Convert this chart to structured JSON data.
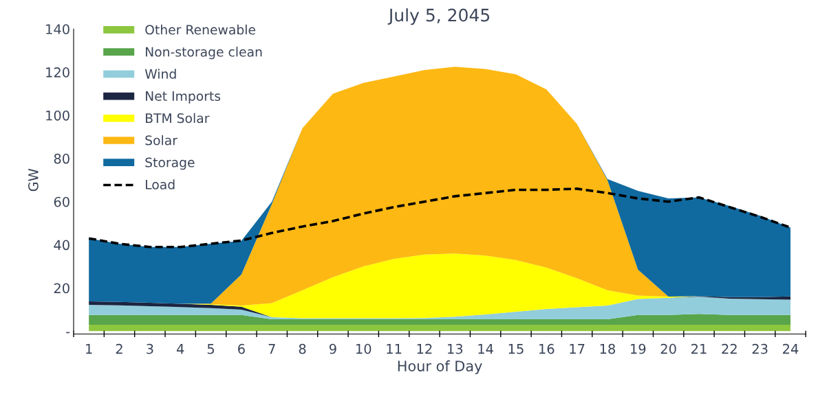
{
  "chart_data": {
    "type": "area",
    "title": "July 5, 2045",
    "xlabel": "Hour of Day",
    "ylabel": "GW",
    "categories": [
      "1",
      "2",
      "3",
      "4",
      "5",
      "6",
      "7",
      "8",
      "9",
      "10",
      "11",
      "12",
      "13",
      "14",
      "15",
      "16",
      "17",
      "18",
      "19",
      "20",
      "21",
      "22",
      "23",
      "24"
    ],
    "stacked": true,
    "ylim": [
      0,
      140
    ],
    "yticks": [
      {
        "value": 0,
        "label": "-"
      },
      20,
      40,
      60,
      80,
      100,
      120,
      140
    ],
    "grid": false,
    "legend": "top left",
    "series": [
      {
        "name": "Other Renewable",
        "color": "#8dc63f",
        "values": [
          3,
          3,
          3,
          3,
          3,
          3,
          3,
          3,
          3,
          3,
          3,
          3,
          3,
          3,
          3,
          3,
          3,
          3,
          3,
          3,
          3,
          3,
          3,
          3
        ]
      },
      {
        "name": "Non-storage clean",
        "color": "#58a54b",
        "values": [
          4.5,
          4.5,
          4.5,
          4.5,
          4.5,
          4.5,
          2.5,
          2.5,
          2.5,
          2.5,
          2.5,
          2.5,
          2.5,
          2.5,
          2.5,
          2.5,
          2.5,
          2.5,
          4.5,
          4.5,
          5,
          4.5,
          4.5,
          4.5
        ]
      },
      {
        "name": "Wind",
        "color": "#92cddc",
        "values": [
          4.7,
          4.5,
          4.1,
          3.7,
          3.2,
          2.5,
          1,
          0.5,
          0.5,
          0.5,
          0.5,
          0.6,
          1.2,
          2.3,
          3.5,
          4.8,
          5.6,
          6.4,
          7.4,
          8,
          8,
          7.6,
          7.3,
          7.1
        ]
      },
      {
        "name": "Net Imports",
        "color": "#1c2541",
        "values": [
          1.6,
          1.6,
          1.6,
          1.5,
          1.5,
          1.3,
          0,
          0,
          0,
          0,
          0,
          0,
          0,
          0,
          0,
          0,
          0,
          0,
          0,
          0,
          0.3,
          0.7,
          1,
          1.5
        ]
      },
      {
        "name": "BTM Solar",
        "color": "#ffff00",
        "values": [
          0,
          0,
          0,
          0,
          0.3,
          0.6,
          6.5,
          13,
          19,
          24,
          27.5,
          29.4,
          29.3,
          27.2,
          24,
          19.2,
          13.4,
          7.1,
          1.6,
          0.5,
          0,
          0,
          0,
          0
        ]
      },
      {
        "name": "Solar",
        "color": "#fdb813",
        "values": [
          0,
          0,
          0,
          0,
          0.3,
          14.4,
          46,
          75,
          85,
          85,
          84.5,
          85.5,
          86.5,
          86.5,
          86,
          82.5,
          71.5,
          51,
          12,
          0,
          0,
          0,
          0,
          0
        ]
      },
      {
        "name": "Storage",
        "color": "#106aa0",
        "values": [
          29.2,
          26.9,
          25.8,
          26.3,
          27.7,
          15.6,
          1,
          0,
          0,
          0,
          0,
          0,
          0,
          0,
          0,
          0,
          0,
          0.5,
          36.5,
          45.5,
          45.7,
          42.2,
          37.7,
          31.9
        ]
      },
      {
        "name": "Load",
        "type": "line",
        "color": "#000000",
        "line_style": "dashed",
        "values": [
          43,
          40.5,
          39,
          39,
          40.5,
          42,
          45.5,
          48.5,
          51,
          54.5,
          57.5,
          60,
          62.5,
          64,
          65.5,
          65.5,
          66,
          64,
          61.5,
          60,
          62,
          57.5,
          53,
          48
        ]
      }
    ]
  }
}
